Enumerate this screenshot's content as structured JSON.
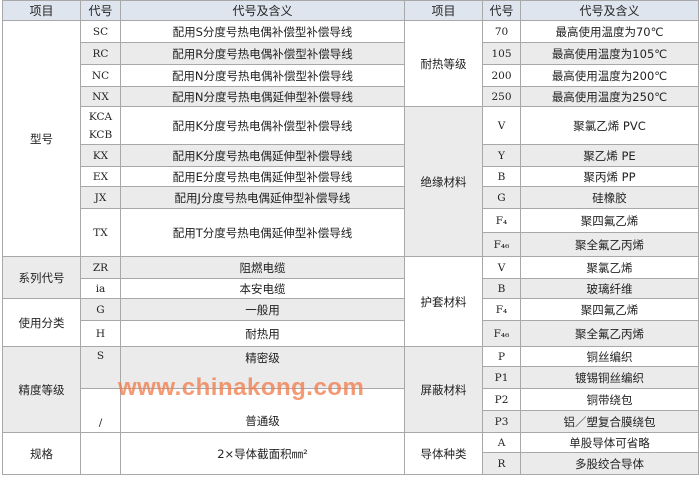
{
  "header": [
    "项目",
    "代号",
    "代号及含义",
    "项目",
    "代号",
    "代号及含义"
  ],
  "left": [
    {
      "item": "型号",
      "rows": [
        {
          "code": "SC",
          "meaning": "配用S分度号热电偶补偿型补偿导线"
        },
        {
          "code": "RC",
          "meaning": "配用R分度号热电偶补偿型补偿导线"
        },
        {
          "code": "NC",
          "meaning": "配用N分度号热电偶补偿型补偿导线"
        },
        {
          "code": "NX",
          "meaning": "配用N分度号热电偶延伸型补偿导线"
        },
        {
          "code": "KCA\nKCB",
          "meaning": "配用K分度号热电偶补偿型补偿导线"
        },
        {
          "code": "KX",
          "meaning": "配用K分度号热电偶延伸型补偿导线"
        },
        {
          "code": "EX",
          "meaning": "配用E分度号热电偶延伸型补偿导线"
        },
        {
          "code": "JX",
          "meaning": "配用J分度号热电偶延伸型补偿导线"
        },
        {
          "code": "TX",
          "meaning": "配用T分度号热电偶延伸型补偿导线"
        }
      ]
    },
    {
      "item": "系列代号",
      "rows": [
        {
          "code": "ZR",
          "meaning": "阻燃电缆"
        },
        {
          "code": "ia",
          "meaning": "本安电缆"
        }
      ]
    },
    {
      "item": "使用分类",
      "rows": [
        {
          "code": "G",
          "meaning": "一般用"
        },
        {
          "code": "H",
          "meaning": "耐热用"
        }
      ]
    },
    {
      "item": "精度等级",
      "rows": [
        {
          "code": "S",
          "meaning": "精密级"
        },
        {
          "code": "/",
          "meaning": "普通级"
        }
      ]
    },
    {
      "item": "规格",
      "rows": [
        {
          "code": "",
          "meaning": "2×导体截面积㎜²"
        }
      ]
    }
  ],
  "right": [
    {
      "item": "耐热等级",
      "rows": [
        {
          "code": "70",
          "meaning": "最高使用温度为70℃"
        },
        {
          "code": "105",
          "meaning": "最高使用温度为105℃"
        },
        {
          "code": "200",
          "meaning": "最高使用温度为200℃"
        },
        {
          "code": "250",
          "meaning": "最高使用温度为250℃"
        }
      ]
    },
    {
      "item": "绝缘材料",
      "rows": [
        {
          "code": "V",
          "meaning": "聚氯乙烯 PVC"
        },
        {
          "code": "Y",
          "meaning": "聚乙烯 PE"
        },
        {
          "code": "B",
          "meaning": "聚丙烯 PP"
        },
        {
          "code": "G",
          "meaning": "硅橡胶"
        },
        {
          "code": "F₄",
          "meaning": "聚四氟乙烯"
        },
        {
          "code": "F₄₆",
          "meaning": "聚全氟乙丙烯"
        }
      ]
    },
    {
      "item": "护套材料",
      "rows": [
        {
          "code": "V",
          "meaning": "聚氯乙烯"
        },
        {
          "code": "B",
          "meaning": "玻璃纤维"
        },
        {
          "code": "F₄",
          "meaning": "聚四氟乙烯"
        },
        {
          "code": "F₄₆",
          "meaning": "聚全氟乙丙烯"
        }
      ]
    },
    {
      "item": "屏蔽材料",
      "rows": [
        {
          "code": "P",
          "meaning": "铜丝编织"
        },
        {
          "code": "P1",
          "meaning": "镀锡铜丝编织"
        },
        {
          "code": "P2",
          "meaning": "铜带绕包"
        },
        {
          "code": "P3",
          "meaning": "铝／塑复合膜绕包"
        }
      ]
    },
    {
      "item": "导体种类",
      "rows": [
        {
          "code": "A",
          "meaning": "单股导体可省略"
        },
        {
          "code": "R",
          "meaning": "多股绞合导体"
        }
      ]
    }
  ],
  "watermark": "www.chinakong.com"
}
